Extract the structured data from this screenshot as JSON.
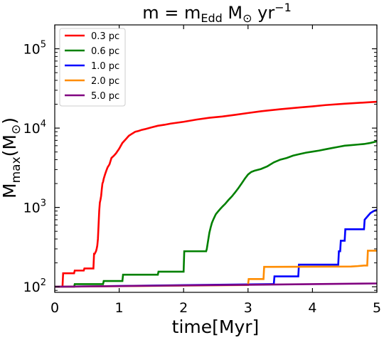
{
  "chart_data": {
    "type": "line",
    "title": "ṁ = ṁ_Edd M☉ yr⁻¹",
    "title_parts": {
      "lhs": "m",
      "eq": " = ",
      "rhs": "m",
      "sub": "Edd",
      "unit": " M",
      "sun": "⊙",
      "yr": " yr",
      "exp": "−1"
    },
    "xlabel": "time[Myr]",
    "ylabel": "M_max(M☉)",
    "ylabel_parts": {
      "base": "M",
      "sub": "max",
      "open": "(M",
      "sun": "⊙",
      "close": ")"
    },
    "xlim": [
      0,
      5
    ],
    "ylim": [
      85,
      200000
    ],
    "yscale": "log",
    "grid": false,
    "legend_position": "upper left",
    "x_ticks": [
      {
        "value": 0,
        "label": "0"
      },
      {
        "value": 1,
        "label": "1"
      },
      {
        "value": 2,
        "label": "2"
      },
      {
        "value": 3,
        "label": "3"
      },
      {
        "value": 4,
        "label": "4"
      },
      {
        "value": 5,
        "label": "5"
      }
    ],
    "y_ticks": [
      {
        "value": 100,
        "base": "10",
        "exp": "2"
      },
      {
        "value": 1000,
        "base": "10",
        "exp": "3"
      },
      {
        "value": 10000,
        "base": "10",
        "exp": "4"
      },
      {
        "value": 100000,
        "base": "10",
        "exp": "5"
      }
    ],
    "series": [
      {
        "name": "0.3 pc",
        "color": "#ff0000",
        "x": [
          0.0,
          0.12,
          0.13,
          0.3,
          0.31,
          0.45,
          0.46,
          0.6,
          0.61,
          0.62,
          0.63,
          0.64,
          0.65,
          0.66,
          0.67,
          0.68,
          0.69,
          0.7,
          0.71,
          0.72,
          0.73,
          0.74,
          0.75,
          0.76,
          0.78,
          0.8,
          0.82,
          0.85,
          0.88,
          0.92,
          0.95,
          1.0,
          1.05,
          1.1,
          1.15,
          1.2,
          1.25,
          1.3,
          1.35,
          1.4,
          1.5,
          1.6,
          1.7,
          1.8,
          1.9,
          2.0,
          2.2,
          2.4,
          2.6,
          2.8,
          3.0,
          3.2,
          3.5,
          3.8,
          4.0,
          4.2,
          4.5,
          4.8,
          5.0
        ],
        "y": [
          100,
          100,
          148,
          148,
          160,
          160,
          170,
          170,
          260,
          260,
          270,
          280,
          300,
          330,
          400,
          600,
          900,
          1150,
          1250,
          1400,
          1700,
          2000,
          2100,
          2300,
          2600,
          2900,
          3200,
          3500,
          4200,
          4500,
          4800,
          5500,
          6500,
          7200,
          8000,
          8500,
          9000,
          9200,
          9500,
          9700,
          10200,
          10700,
          11000,
          11400,
          11700,
          12000,
          12800,
          13500,
          14000,
          14700,
          15500,
          16300,
          17300,
          18200,
          18800,
          19500,
          20300,
          21000,
          21500
        ]
      },
      {
        "name": "0.6 pc",
        "color": "#008000",
        "x": [
          0.0,
          0.3,
          0.31,
          0.75,
          0.76,
          1.05,
          1.06,
          1.6,
          1.61,
          2.0,
          2.01,
          2.35,
          2.36,
          2.38,
          2.4,
          2.42,
          2.44,
          2.46,
          2.48,
          2.5,
          2.53,
          2.56,
          2.6,
          2.65,
          2.7,
          2.75,
          2.8,
          2.85,
          2.9,
          2.95,
          3.0,
          3.05,
          3.1,
          3.2,
          3.3,
          3.4,
          3.5,
          3.6,
          3.7,
          3.8,
          3.9,
          4.0,
          4.1,
          4.2,
          4.3,
          4.4,
          4.5,
          4.6,
          4.7,
          4.8,
          4.9,
          5.0
        ],
        "y": [
          100,
          100,
          108,
          108,
          118,
          118,
          142,
          142,
          155,
          155,
          280,
          280,
          300,
          380,
          480,
          560,
          640,
          700,
          760,
          820,
          880,
          940,
          1020,
          1120,
          1250,
          1380,
          1550,
          1750,
          2000,
          2300,
          2600,
          2800,
          2900,
          3050,
          3300,
          3700,
          4000,
          4200,
          4500,
          4700,
          4900,
          5050,
          5200,
          5400,
          5600,
          5800,
          6000,
          6100,
          6200,
          6300,
          6500,
          6800
        ]
      },
      {
        "name": "1.0 pc",
        "color": "#0000ff",
        "x": [
          0.0,
          3.4,
          3.41,
          3.78,
          3.79,
          4.4,
          4.41,
          4.43,
          4.44,
          4.5,
          4.51,
          4.8,
          4.81,
          4.86,
          4.9,
          4.95,
          5.0
        ],
        "y": [
          100,
          108,
          135,
          135,
          190,
          190,
          280,
          280,
          380,
          380,
          530,
          530,
          700,
          780,
          850,
          900,
          930
        ]
      },
      {
        "name": "2.0 pc",
        "color": "#ff8c00",
        "x": [
          0.0,
          3.0,
          3.01,
          3.24,
          3.25,
          4.6,
          4.7,
          4.8,
          4.85,
          4.86,
          5.0
        ],
        "y": [
          100,
          105,
          125,
          125,
          178,
          180,
          182,
          185,
          185,
          285,
          285
        ]
      },
      {
        "name": "5.0 pc",
        "color": "#800080",
        "x": [
          0.0,
          5.0
        ],
        "y": [
          100,
          110
        ]
      }
    ]
  }
}
